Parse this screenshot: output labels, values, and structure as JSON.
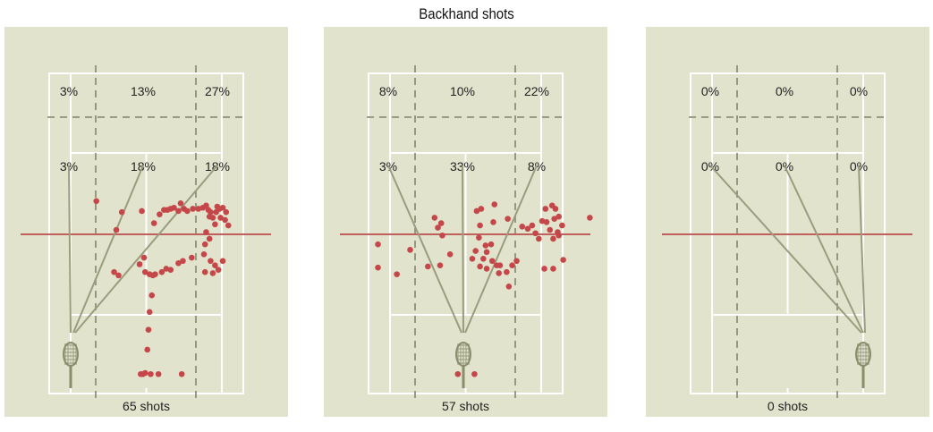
{
  "title": "Backhand shots",
  "colors": {
    "panel_bg": "#e1e3cc",
    "court_lines": "#ffffff",
    "dashed_lines": "#8f9077",
    "trajectory_lines": "#9a9c7e",
    "net": "#c0605c",
    "dots": "#c5474a",
    "racket": "#8a8c6c"
  },
  "chart_data": [
    {
      "type": "scatter",
      "count_label": "65 shots",
      "zone_percentages": {
        "deep": [
          "3%",
          "13%",
          "27%"
        ],
        "short": [
          "3%",
          "18%",
          "18%"
        ]
      },
      "points": [
        [
          -4.5,
          3
        ],
        [
          -2.7,
          0.4
        ],
        [
          -2.2,
          2
        ],
        [
          -0.4,
          2.1
        ],
        [
          0.7,
          1
        ],
        [
          1.2,
          1.8
        ],
        [
          1.6,
          2.2
        ],
        [
          1.9,
          2.2
        ],
        [
          2.2,
          2.3
        ],
        [
          2.5,
          2.4
        ],
        [
          2.9,
          2.1
        ],
        [
          3.1,
          2.8
        ],
        [
          3.4,
          2.3
        ],
        [
          3.7,
          2.1
        ],
        [
          4.2,
          2.3
        ],
        [
          4.7,
          2.3
        ],
        [
          5.1,
          2.4
        ],
        [
          5.6,
          2.2
        ],
        [
          5.8,
          2
        ],
        [
          5.4,
          2.6
        ],
        [
          6,
          1.5
        ],
        [
          6.3,
          2
        ],
        [
          6.4,
          2.5
        ],
        [
          6.6,
          2.3
        ],
        [
          6.9,
          2.4
        ],
        [
          7.2,
          2
        ],
        [
          7.1,
          1.3
        ],
        [
          7.4,
          0.8
        ],
        [
          6.7,
          1.5
        ],
        [
          6.2,
          0.9
        ],
        [
          5.7,
          1.6
        ],
        [
          5.4,
          0.2
        ],
        [
          5.7,
          -0.4
        ],
        [
          5.3,
          -0.9
        ],
        [
          5.2,
          -1.8
        ],
        [
          5.8,
          -2.4
        ],
        [
          6.2,
          -2.8
        ],
        [
          6.5,
          -3.2
        ],
        [
          6.9,
          -2.4
        ],
        [
          6,
          -3.5
        ],
        [
          5.3,
          -3.4
        ],
        [
          4.1,
          -2.1
        ],
        [
          3.3,
          -2.4
        ],
        [
          2.9,
          -2.6
        ],
        [
          2.2,
          -3.2
        ],
        [
          1.8,
          -3.1
        ],
        [
          1.4,
          -3.4
        ],
        [
          0.8,
          -3.6
        ],
        [
          0.6,
          -3.7
        ],
        [
          0.3,
          -3.6
        ],
        [
          -0.2,
          -2.1
        ],
        [
          -0.6,
          -2.7
        ],
        [
          -0.1,
          -3.4
        ],
        [
          -2.9,
          -3.4
        ],
        [
          -2.5,
          -3.7
        ],
        [
          0.5,
          -5.5
        ],
        [
          0.3,
          -7
        ],
        [
          0.2,
          -8.6
        ],
        [
          0.1,
          -10.4
        ],
        [
          -0.1,
          -12.5
        ],
        [
          -0.5,
          -12.6
        ],
        [
          -0.3,
          -12.6
        ],
        [
          0.4,
          -12.6
        ],
        [
          1.1,
          -12.6
        ],
        [
          3.2,
          -12.6
        ]
      ]
    },
    {
      "type": "scatter",
      "count_label": "57 shots",
      "zone_percentages": {
        "deep": [
          "8%",
          "10%",
          "22%"
        ],
        "short": [
          "3%",
          "33%",
          "8%"
        ]
      },
      "points": [
        [
          -5,
          -1.4
        ],
        [
          -2.8,
          1.5
        ],
        [
          -2.5,
          0.6
        ],
        [
          -2.2,
          1
        ],
        [
          -2.1,
          -0.1
        ],
        [
          -1.4,
          -1.8
        ],
        [
          1,
          2.1
        ],
        [
          1.3,
          0.8
        ],
        [
          1.4,
          2.3
        ],
        [
          0.6,
          -2.2
        ],
        [
          3.8,
          1.4
        ],
        [
          2.5,
          1.1
        ],
        [
          2.6,
          2.7
        ],
        [
          1.8,
          -1
        ],
        [
          1.2,
          -0.3
        ],
        [
          1.9,
          -1.6
        ],
        [
          2.3,
          -0.9
        ],
        [
          0.9,
          -1.5
        ],
        [
          1.6,
          -2.2
        ],
        [
          2.4,
          -2.4
        ],
        [
          2.8,
          -2.8
        ],
        [
          1.3,
          -2.9
        ],
        [
          1.9,
          -3.1
        ],
        [
          3,
          -3.5
        ],
        [
          3.1,
          -2.8
        ],
        [
          3.7,
          -3.4
        ],
        [
          4.2,
          -2.8
        ],
        [
          3.9,
          -4.7
        ],
        [
          4.6,
          -2.4
        ],
        [
          5.1,
          0.7
        ],
        [
          5.6,
          0.5
        ],
        [
          6,
          0.8
        ],
        [
          6.3,
          0.1
        ],
        [
          6.6,
          -0.4
        ],
        [
          6.9,
          1.2
        ],
        [
          7.3,
          1.1
        ],
        [
          7.2,
          2.3
        ],
        [
          7.8,
          2.6
        ],
        [
          8.1,
          2.3
        ],
        [
          8,
          1.4
        ],
        [
          8.4,
          1.6
        ],
        [
          8.7,
          0.8
        ],
        [
          8.3,
          0.2
        ],
        [
          7.6,
          0.4
        ],
        [
          7.9,
          -0.4
        ],
        [
          8.4,
          -0.1
        ],
        [
          8.8,
          -2.3
        ],
        [
          7.9,
          -3.1
        ],
        [
          7.1,
          -3.1
        ],
        [
          11.2,
          1.5
        ],
        [
          -7.9,
          -0.9
        ],
        [
          -2.3,
          -2.8
        ],
        [
          -3.4,
          -2.9
        ],
        [
          -7.9,
          -3
        ],
        [
          -6.2,
          -3.6
        ],
        [
          -0.7,
          -12.6
        ],
        [
          0.8,
          -12.6
        ]
      ]
    },
    {
      "type": "scatter",
      "count_label": "0 shots",
      "zone_percentages": {
        "deep": [
          "0%",
          "0%",
          "0%"
        ],
        "short": [
          "0%",
          "0%",
          "0%"
        ]
      },
      "points": []
    }
  ]
}
